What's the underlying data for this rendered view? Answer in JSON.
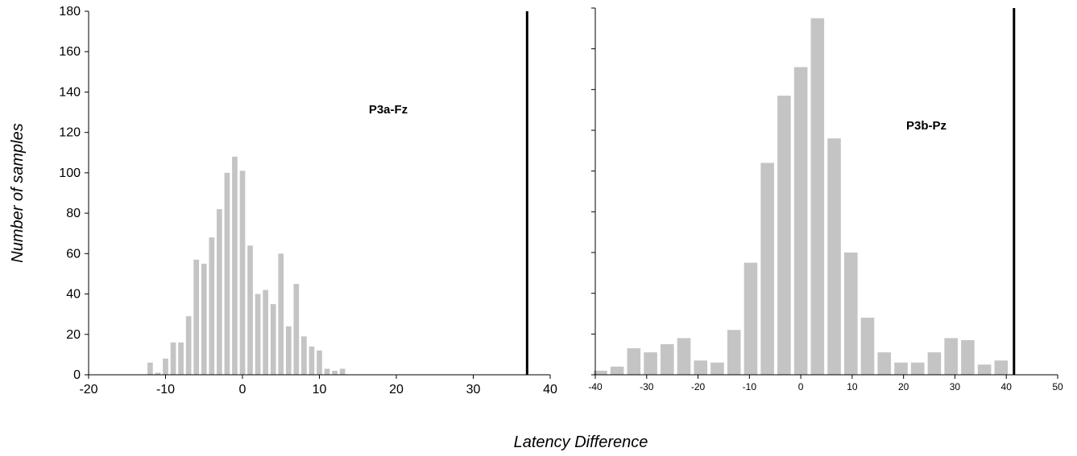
{
  "chart_data": [
    {
      "type": "bar",
      "panel_label": "P3a-Fz",
      "xlim": [
        -20,
        40
      ],
      "ylim": [
        0,
        180
      ],
      "xticks": [
        -20,
        -10,
        0,
        10,
        20,
        30,
        40
      ],
      "yticks": [
        0,
        20,
        40,
        60,
        80,
        100,
        120,
        140,
        160,
        180
      ],
      "bin_width": 1,
      "x": [
        -12,
        -11,
        -10,
        -9,
        -8,
        -7,
        -6,
        -5,
        -4,
        -3,
        -2,
        -1,
        0,
        1,
        2,
        3,
        4,
        5,
        6,
        7,
        8,
        9,
        10,
        11,
        12,
        13
      ],
      "values": [
        6,
        1,
        8,
        16,
        16,
        29,
        57,
        55,
        68,
        82,
        100,
        108,
        101,
        64,
        40,
        42,
        35,
        60,
        24,
        45,
        19,
        14,
        12,
        3,
        2,
        3
      ],
      "reference_line_x": 37,
      "bar_color": "#c4c4c4",
      "line_color": "#000000"
    },
    {
      "type": "bar",
      "panel_label": "P3b-Pz",
      "xlim": [
        -40,
        50
      ],
      "ylim": [
        0,
        180
      ],
      "xticks": [
        -40,
        -30,
        -20,
        -10,
        0,
        10,
        20,
        30,
        40,
        50
      ],
      "bin_width": 3.25,
      "x": [
        -39,
        -35.75,
        -32.5,
        -29.25,
        -26,
        -22.75,
        -19.5,
        -16.25,
        -13,
        -9.75,
        -6.5,
        -3.25,
        0,
        3.25,
        6.5,
        9.75,
        13,
        16.25,
        19.5,
        22.75,
        26,
        29.25,
        32.5,
        35.75,
        39
      ],
      "values": [
        2,
        4,
        13,
        11,
        15,
        18,
        7,
        6,
        22,
        55,
        104,
        137,
        151,
        175,
        116,
        60,
        28,
        11,
        6,
        6,
        11,
        18,
        17,
        5,
        7
      ],
      "reference_line_x": 41.5,
      "bar_color": "#c4c4c4",
      "line_color": "#000000"
    }
  ],
  "axis_titles": {
    "ylabel": "Number of samples",
    "xlabel": "Latency Difference"
  }
}
